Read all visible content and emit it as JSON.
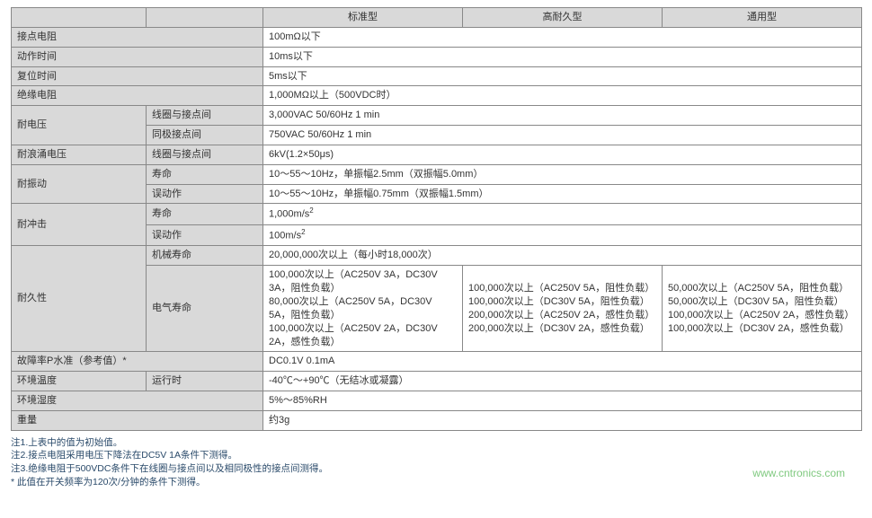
{
  "headers": {
    "col1": "",
    "col2": "",
    "std": "标准型",
    "hd": "高耐久型",
    "gen": "通用型"
  },
  "rows": {
    "contact_resistance": {
      "label": "接点电阻",
      "value": "100mΩ以下"
    },
    "operate_time": {
      "label": "动作时间",
      "value": "10ms以下"
    },
    "release_time": {
      "label": "复位时间",
      "value": "5ms以下"
    },
    "insulation_resistance": {
      "label": "绝缘电阻",
      "value": "1,000MΩ以上（500VDC时）"
    },
    "dielectric": {
      "label": "耐电压",
      "coil_contact": {
        "sub": "线圈与接点间",
        "value": "3,000VAC 50/60Hz 1 min"
      },
      "same_polarity": {
        "sub": "同极接点间",
        "value": "750VAC 50/60Hz 1 min"
      }
    },
    "surge": {
      "label": "耐浪涌电压",
      "sub": "线圈与接点间",
      "value": "6kV(1.2×50μs)"
    },
    "vibration": {
      "label": "耐振动",
      "life": {
        "sub": "寿命",
        "value": "10～55～10Hz，单振幅2.5mm（双振幅5.0mm）"
      },
      "malfunction": {
        "sub": "误动作",
        "value": "10～55～10Hz，单振幅0.75mm（双振幅1.5mm）"
      }
    },
    "shock": {
      "label": "耐冲击",
      "life": {
        "sub": "寿命",
        "value_html": "1,000m/s<sup>2</sup>"
      },
      "malfunction": {
        "sub": "误动作",
        "value_html": "100m/s<sup>2</sup>"
      }
    },
    "durability": {
      "label": "耐久性",
      "mechanical": {
        "sub": "机械寿命",
        "value": "20,000,000次以上（每小时18,000次）"
      },
      "electrical": {
        "sub": "电气寿命",
        "std": "100,000次以上（AC250V 3A，DC30V 3A，阻性负载）\n80,000次以上（AC250V 5A，DC30V 5A，阻性负载）\n100,000次以上（AC250V 2A，DC30V 2A，感性负载）",
        "hd": "100,000次以上（AC250V 5A，阻性负载）\n100,000次以上（DC30V 5A，阻性负载）\n200,000次以上（AC250V 2A，感性负载）\n200,000次以上（DC30V 2A，感性负载）",
        "gen": "50,000次以上（AC250V 5A，阻性负载）\n50,000次以上（DC30V 5A，阻性负载）\n100,000次以上（AC250V 2A，感性负载）\n100,000次以上（DC30V 2A，感性负载）"
      }
    },
    "failure_rate": {
      "label": "故障率P水准（参考值）*",
      "value": "DC0.1V 0.1mA"
    },
    "ambient_temp": {
      "label": "环境温度",
      "sub": "运行时",
      "value": "-40℃～+90℃（无结冰或凝露）"
    },
    "ambient_humidity": {
      "label": "环境湿度",
      "value": "5%～85%RH"
    },
    "weight": {
      "label": "重量",
      "value": "约3g"
    }
  },
  "notes": {
    "n1": "注1.上表中的值为初始值。",
    "n2": "注2.接点电阻采用电压下降法在DC5V 1A条件下测得。",
    "n3": "注3.绝缘电阻于500VDC条件下在线圈与接点间以及相同极性的接点间测得。",
    "n4": "* 此值在开关频率为120次/分钟的条件下测得。"
  },
  "watermark": "www.cntronics.com",
  "widths": {
    "col1": "150",
    "col2": "130",
    "datacol": "222"
  }
}
